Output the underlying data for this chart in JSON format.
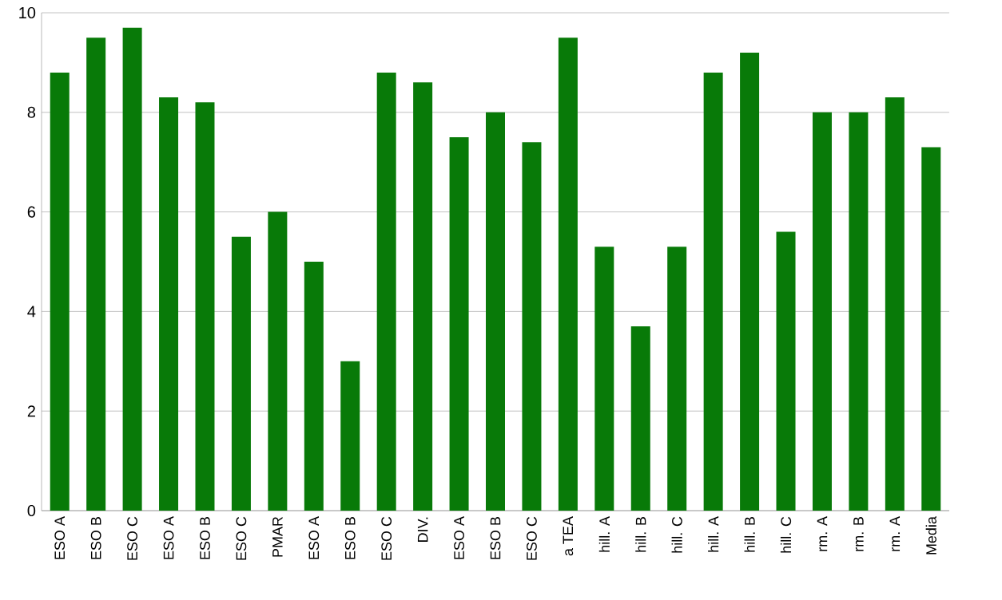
{
  "chart_data": {
    "type": "bar",
    "categories": [
      "ESO A",
      "ESO B",
      "ESO C",
      "ESO A",
      "ESO B",
      "ESO C",
      "PMAR",
      "ESO A",
      "ESO B",
      "ESO C",
      "DIV.",
      "ESO A",
      "ESO B",
      "ESO C",
      "a TEA",
      "hill. A",
      "hill. B",
      "hill. C",
      "hill. A",
      "hill. B",
      "hill. C",
      "rm. A",
      "rm. B",
      "rm. A",
      "Media"
    ],
    "values": [
      8.8,
      9.5,
      9.7,
      8.3,
      8.2,
      5.5,
      6.0,
      5.0,
      3.0,
      8.8,
      8.6,
      7.5,
      8.0,
      7.4,
      9.5,
      5.3,
      3.7,
      5.3,
      8.8,
      9.2,
      5.6,
      8.0,
      8.0,
      8.3,
      7.3
    ],
    "color": "#087a08",
    "ylim": [
      0,
      10
    ],
    "yticks": [
      0,
      2,
      4,
      6,
      8,
      10
    ],
    "grid": "y"
  }
}
